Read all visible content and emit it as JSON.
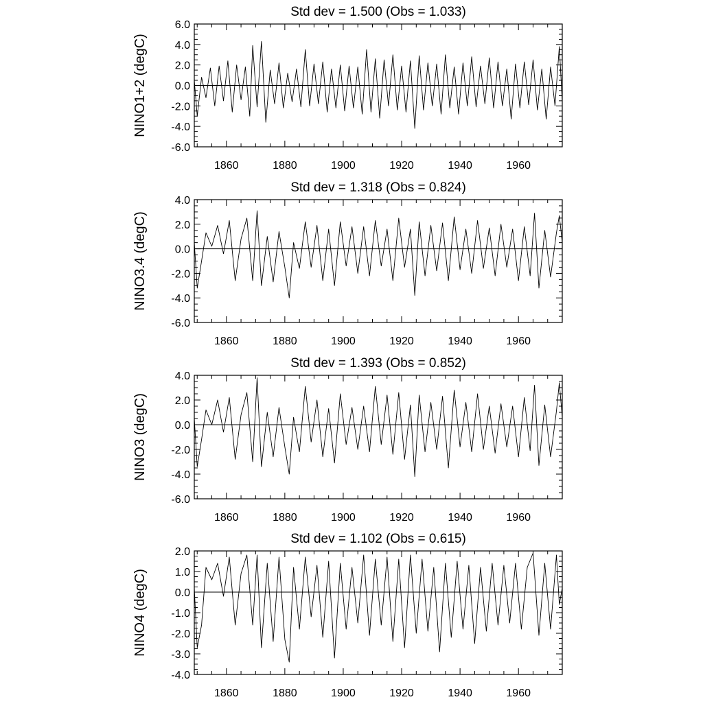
{
  "chart_data": [
    {
      "type": "line",
      "title": "Std dev = 1.500 (Obs = 1.033)",
      "ylabel": "NINO1+2 (degC)",
      "xlabel": "",
      "xlim": [
        1849,
        1975
      ],
      "ylim": [
        -6.0,
        6.0
      ],
      "yticks": [
        -6.0,
        -4.0,
        -2.0,
        0.0,
        2.0,
        4.0,
        6.0
      ],
      "ytick_labels": [
        "-6.0",
        "-4.0",
        "-2.0",
        "0.0",
        "2.0",
        "4.0",
        "6.0"
      ],
      "xticks": [
        1860,
        1880,
        1900,
        1920,
        1940,
        1960
      ],
      "xtick_labels": [
        "1860",
        "1880",
        "1900",
        "1920",
        "1940",
        "1960"
      ],
      "zero_line": true,
      "grid": false,
      "series": [
        {
          "x": [
            1849.0,
            1850.0,
            1851.5,
            1853.0,
            1854.5,
            1856.0,
            1857.5,
            1859.0,
            1860.5,
            1862.0,
            1863.5,
            1865.0,
            1866.5,
            1868.0,
            1869.0,
            1870.5,
            1872.0,
            1873.5,
            1875.0,
            1876.5,
            1878.0,
            1879.5,
            1881.0,
            1882.5,
            1884.0,
            1885.5,
            1887.0,
            1888.5,
            1890.0,
            1891.5,
            1893.0,
            1894.5,
            1896.0,
            1897.5,
            1899.0,
            1900.5,
            1902.0,
            1903.5,
            1905.0,
            1906.5,
            1908.0,
            1909.5,
            1911.0,
            1912.5,
            1914.0,
            1915.5,
            1917.0,
            1918.5,
            1920.0,
            1921.5,
            1923.0,
            1924.5,
            1926.0,
            1927.5,
            1929.0,
            1930.5,
            1932.0,
            1933.5,
            1935.0,
            1936.5,
            1938.0,
            1939.5,
            1941.0,
            1942.5,
            1944.0,
            1945.5,
            1947.0,
            1948.5,
            1950.0,
            1951.5,
            1953.0,
            1954.5,
            1956.0,
            1957.5,
            1959.0,
            1960.5,
            1962.0,
            1963.5,
            1965.0,
            1966.5,
            1968.0,
            1969.5,
            1971.0,
            1972.5,
            1974.0,
            1975.0
          ],
          "y": [
            0.5,
            -3.0,
            0.8,
            -1.2,
            1.7,
            -2.0,
            1.9,
            -1.5,
            2.4,
            -2.6,
            2.0,
            -1.4,
            1.8,
            -3.0,
            3.9,
            -2.1,
            4.3,
            -3.6,
            1.5,
            -1.8,
            2.2,
            -2.2,
            1.2,
            -1.6,
            1.6,
            -2.1,
            3.5,
            -2.0,
            2.1,
            -1.8,
            2.3,
            -2.6,
            1.6,
            -2.2,
            2.0,
            -2.5,
            1.9,
            -2.2,
            1.8,
            -2.8,
            3.5,
            -2.6,
            2.6,
            -3.2,
            2.5,
            -2.0,
            3.0,
            -2.4,
            1.9,
            -2.6,
            2.4,
            -4.2,
            2.9,
            -2.4,
            2.2,
            -2.0,
            2.1,
            -2.8,
            3.0,
            -2.2,
            1.8,
            -2.8,
            2.2,
            -2.0,
            2.8,
            -2.1,
            1.9,
            -1.8,
            2.7,
            -2.2,
            2.3,
            -2.0,
            1.6,
            -3.3,
            2.1,
            -2.2,
            2.3,
            -1.9,
            2.5,
            -2.4,
            1.6,
            -3.3,
            1.8,
            -2.0,
            3.8,
            -1.6
          ]
        }
      ]
    },
    {
      "type": "line",
      "title": "Std dev = 1.318 (Obs = 0.824)",
      "ylabel": "NINO3.4 (degC)",
      "xlabel": "",
      "xlim": [
        1849,
        1975
      ],
      "ylim": [
        -6.0,
        4.0
      ],
      "yticks": [
        -6.0,
        -4.0,
        -2.0,
        0.0,
        2.0,
        4.0
      ],
      "ytick_labels": [
        "-6.0",
        "-4.0",
        "-2.0",
        "0.0",
        "2.0",
        "4.0"
      ],
      "xticks": [
        1860,
        1880,
        1900,
        1920,
        1940,
        1960
      ],
      "xtick_labels": [
        "1860",
        "1880",
        "1900",
        "1920",
        "1940",
        "1960"
      ],
      "zero_line": true,
      "grid": false,
      "series": [
        {
          "x": [
            1849.0,
            1850.0,
            1851.5,
            1853.0,
            1855.0,
            1857.0,
            1859.0,
            1861.0,
            1863.0,
            1865.0,
            1867.0,
            1869.0,
            1870.5,
            1872.0,
            1874.0,
            1876.0,
            1878.0,
            1880.0,
            1881.5,
            1883.0,
            1885.0,
            1887.0,
            1889.0,
            1891.0,
            1893.0,
            1895.0,
            1897.0,
            1899.0,
            1901.0,
            1903.0,
            1905.0,
            1907.0,
            1909.0,
            1911.0,
            1913.0,
            1915.0,
            1917.0,
            1919.0,
            1921.0,
            1923.0,
            1924.5,
            1926.0,
            1928.0,
            1930.0,
            1932.0,
            1934.0,
            1936.0,
            1938.0,
            1940.0,
            1942.0,
            1944.0,
            1946.0,
            1948.0,
            1950.0,
            1952.0,
            1954.0,
            1956.0,
            1958.0,
            1960.0,
            1962.0,
            1964.0,
            1965.5,
            1967.0,
            1969.0,
            1971.0,
            1973.0,
            1974.0,
            1975.0
          ],
          "y": [
            0.5,
            -3.2,
            -1.0,
            1.3,
            0.2,
            1.9,
            -0.4,
            2.3,
            -2.6,
            0.8,
            2.5,
            -2.6,
            3.1,
            -3.0,
            1.0,
            -2.7,
            1.4,
            -1.5,
            -4.0,
            0.5,
            -1.6,
            2.2,
            -1.5,
            1.9,
            -2.6,
            1.6,
            -3.0,
            2.2,
            -1.4,
            1.8,
            -2.0,
            1.8,
            -2.2,
            2.3,
            -1.4,
            1.6,
            -2.6,
            2.5,
            -1.5,
            1.6,
            -3.8,
            2.2,
            -2.2,
            1.9,
            -1.8,
            2.1,
            -2.6,
            2.6,
            -1.7,
            1.6,
            -2.0,
            2.3,
            -1.6,
            1.7,
            -2.2,
            2.0,
            -1.5,
            1.6,
            -2.6,
            1.8,
            -2.2,
            2.9,
            -3.2,
            1.5,
            -2.3,
            1.3,
            2.7,
            0.5
          ]
        }
      ]
    },
    {
      "type": "line",
      "title": "Std dev = 1.393 (Obs = 0.852)",
      "ylabel": "NINO3 (degC)",
      "xlabel": "",
      "xlim": [
        1849,
        1975
      ],
      "ylim": [
        -6.0,
        4.0
      ],
      "yticks": [
        -6.0,
        -4.0,
        -2.0,
        0.0,
        2.0,
        4.0
      ],
      "ytick_labels": [
        "-6.0",
        "-4.0",
        "-2.0",
        "0.0",
        "2.0",
        "4.0"
      ],
      "xticks": [
        1860,
        1880,
        1900,
        1920,
        1940,
        1960
      ],
      "xtick_labels": [
        "1860",
        "1880",
        "1900",
        "1920",
        "1940",
        "1960"
      ],
      "zero_line": true,
      "grid": false,
      "series": [
        {
          "x": [
            1849.0,
            1850.0,
            1851.5,
            1853.0,
            1855.0,
            1857.0,
            1859.0,
            1861.0,
            1863.0,
            1865.0,
            1867.0,
            1869.0,
            1870.5,
            1872.0,
            1874.0,
            1876.0,
            1878.0,
            1880.0,
            1881.5,
            1883.0,
            1885.0,
            1887.0,
            1889.0,
            1891.0,
            1893.0,
            1895.0,
            1897.0,
            1899.0,
            1901.0,
            1903.0,
            1905.0,
            1907.0,
            1909.0,
            1911.0,
            1913.0,
            1915.0,
            1917.0,
            1919.0,
            1921.0,
            1923.0,
            1924.5,
            1926.0,
            1928.0,
            1930.0,
            1932.0,
            1934.0,
            1936.0,
            1938.0,
            1940.0,
            1942.0,
            1944.0,
            1946.0,
            1948.0,
            1950.0,
            1952.0,
            1954.0,
            1956.0,
            1958.0,
            1960.0,
            1962.0,
            1964.0,
            1965.5,
            1967.0,
            1969.0,
            1971.0,
            1973.0,
            1974.0,
            1975.0
          ],
          "y": [
            0.5,
            -3.4,
            -1.2,
            1.2,
            0.0,
            2.0,
            -0.6,
            2.2,
            -2.8,
            0.8,
            2.6,
            -3.0,
            3.8,
            -3.4,
            1.0,
            -2.6,
            1.4,
            -1.8,
            -4.0,
            0.6,
            -2.2,
            3.1,
            -1.4,
            2.0,
            -2.6,
            1.3,
            -3.1,
            2.5,
            -1.6,
            1.4,
            -2.0,
            1.5,
            -2.2,
            3.1,
            -1.6,
            2.4,
            -2.4,
            2.6,
            -2.8,
            1.6,
            -4.2,
            2.4,
            -2.2,
            1.8,
            -2.0,
            2.3,
            -3.5,
            2.8,
            -1.8,
            1.8,
            -2.2,
            2.5,
            -2.0,
            1.5,
            -2.3,
            1.7,
            -1.8,
            1.5,
            -2.6,
            2.2,
            -2.1,
            3.2,
            -3.3,
            1.6,
            -2.6,
            1.1,
            3.4,
            0.6
          ]
        }
      ]
    },
    {
      "type": "line",
      "title": "Std dev = 1.102 (Obs = 0.615)",
      "ylabel": "NINO4 (degC)",
      "xlabel": "",
      "xlim": [
        1849,
        1975
      ],
      "ylim": [
        -4.0,
        2.0
      ],
      "yticks": [
        -4.0,
        -3.0,
        -2.0,
        -1.0,
        0.0,
        1.0,
        2.0
      ],
      "ytick_labels": [
        "-4.0",
        "-3.0",
        "-2.0",
        "-1.0",
        "0.0",
        "1.0",
        "2.0"
      ],
      "xticks": [
        1860,
        1880,
        1900,
        1920,
        1940,
        1960
      ],
      "xtick_labels": [
        "1860",
        "1880",
        "1900",
        "1920",
        "1940",
        "1960"
      ],
      "zero_line": true,
      "grid": false,
      "series": [
        {
          "x": [
            1849.0,
            1850.0,
            1851.5,
            1853.0,
            1855.0,
            1857.0,
            1859.0,
            1861.0,
            1863.0,
            1865.0,
            1867.0,
            1869.0,
            1870.5,
            1872.0,
            1874.0,
            1876.0,
            1878.0,
            1880.0,
            1881.5,
            1883.0,
            1885.0,
            1887.0,
            1889.0,
            1891.0,
            1893.0,
            1895.0,
            1897.0,
            1899.0,
            1901.0,
            1903.0,
            1905.0,
            1907.0,
            1909.0,
            1911.0,
            1913.0,
            1915.0,
            1917.0,
            1919.0,
            1921.0,
            1923.0,
            1925.0,
            1927.0,
            1929.0,
            1931.0,
            1933.0,
            1935.0,
            1937.0,
            1939.0,
            1941.0,
            1943.0,
            1945.0,
            1947.0,
            1949.0,
            1951.0,
            1953.0,
            1955.0,
            1957.0,
            1959.0,
            1961.0,
            1963.0,
            1965.0,
            1967.0,
            1969.0,
            1971.0,
            1973.0,
            1974.0,
            1975.0
          ],
          "y": [
            0.2,
            -2.7,
            -1.6,
            1.2,
            0.6,
            1.4,
            -0.2,
            1.7,
            -1.6,
            0.9,
            1.8,
            -1.6,
            1.8,
            -2.7,
            1.4,
            -2.4,
            1.7,
            -2.3,
            -3.4,
            1.2,
            -1.8,
            1.7,
            -1.2,
            1.3,
            -2.2,
            1.5,
            -3.2,
            1.4,
            -1.8,
            1.2,
            -1.5,
            1.8,
            -2.1,
            1.6,
            -1.6,
            1.7,
            -2.4,
            1.6,
            -2.7,
            1.8,
            -2.0,
            1.6,
            -1.9,
            1.2,
            -2.9,
            1.4,
            -2.2,
            1.5,
            -1.8,
            1.3,
            -2.5,
            1.2,
            -1.9,
            1.4,
            -1.6,
            1.3,
            -1.5,
            1.4,
            -1.8,
            1.2,
            1.9,
            -2.1,
            1.4,
            -1.8,
            1.8,
            -0.6,
            0.2
          ]
        }
      ]
    }
  ]
}
